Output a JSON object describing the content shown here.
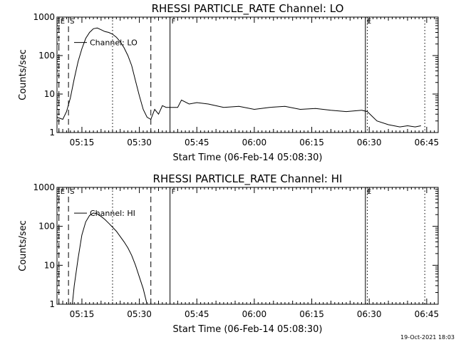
{
  "chart_data": [
    {
      "type": "line",
      "title": "RHESSI PARTICLE_RATE Channel: LO",
      "xlabel": "Start Time (06-Feb-14 05:08:30)",
      "ylabel": "Counts/sec",
      "yscale": "log",
      "ylim": [
        1,
        1000
      ],
      "xlim": [
        "05:08:30",
        "06:48:00"
      ],
      "x_ticks": [
        "05:15",
        "05:30",
        "05:45",
        "06:00",
        "06:15",
        "06:30",
        "06:45"
      ],
      "y_ticks": [
        "1",
        "10",
        "100",
        "1000"
      ],
      "legend": {
        "label": "Channel: LO",
        "position": "top-left"
      },
      "vertical_markers": [
        {
          "time": "05:09:00",
          "style": "dashed",
          "label": "E"
        },
        {
          "time": "05:11:30",
          "style": "dashed",
          "label": "S"
        },
        {
          "time": "05:23:00",
          "style": "dotted",
          "label": ""
        },
        {
          "time": "05:33:00",
          "style": "dashed",
          "label": ""
        },
        {
          "time": "05:38:00",
          "style": "solid",
          "label": "F"
        },
        {
          "time": "06:29:00",
          "style": "solid",
          "label": "E"
        },
        {
          "time": "06:29:30",
          "style": "dotted",
          "label": ""
        },
        {
          "time": "06:44:30",
          "style": "dotted",
          "label": ""
        }
      ],
      "series": [
        {
          "name": "Channel: LO",
          "x": [
            "05:08:30",
            "05:10:00",
            "05:11:00",
            "05:12:00",
            "05:13:00",
            "05:14:00",
            "05:15:00",
            "05:16:00",
            "05:17:00",
            "05:18:00",
            "05:19:00",
            "05:20:00",
            "05:21:00",
            "05:22:00",
            "05:23:00",
            "05:24:00",
            "05:25:00",
            "05:26:00",
            "05:27:00",
            "05:28:00",
            "05:29:00",
            "05:30:00",
            "05:31:00",
            "05:32:00",
            "05:33:00",
            "05:34:00",
            "05:35:00",
            "05:36:00",
            "05:37:00",
            "05:38:00",
            "05:40:00",
            "05:41:00",
            "05:43:00",
            "05:45:00",
            "05:48:00",
            "05:52:00",
            "05:56:00",
            "06:00:00",
            "06:04:00",
            "06:08:00",
            "06:12:00",
            "06:16:00",
            "06:20:00",
            "06:24:00",
            "06:28:00",
            "06:29:30",
            "06:32:00",
            "06:35:00",
            "06:38:00",
            "06:40:00",
            "06:42:00",
            "06:43:30"
          ],
          "values": [
            2.5,
            2.2,
            3.5,
            8,
            25,
            70,
            150,
            280,
            400,
            500,
            520,
            470,
            420,
            400,
            360,
            300,
            230,
            160,
            100,
            55,
            22,
            9,
            4,
            2.5,
            2.2,
            4,
            3,
            5,
            4.5,
            4.5,
            4.5,
            7,
            5.5,
            6,
            5.5,
            4.5,
            4.8,
            4,
            4.5,
            4.8,
            4,
            4.2,
            3.8,
            3.5,
            3.8,
            3.5,
            2,
            1.6,
            1.4,
            1.5,
            1.4,
            1.5
          ]
        }
      ]
    },
    {
      "type": "line",
      "title": "RHESSI PARTICLE_RATE Channel: HI",
      "xlabel": "Start Time (06-Feb-14 05:08:30)",
      "ylabel": "Counts/sec",
      "yscale": "log",
      "ylim": [
        1,
        1000
      ],
      "xlim": [
        "05:08:30",
        "06:48:00"
      ],
      "x_ticks": [
        "05:15",
        "05:30",
        "05:45",
        "06:00",
        "06:15",
        "06:30",
        "06:45"
      ],
      "y_ticks": [
        "1",
        "10",
        "100",
        "1000"
      ],
      "legend": {
        "label": "Channel: HI",
        "position": "top-left"
      },
      "vertical_markers": [
        {
          "time": "05:09:00",
          "style": "dashed",
          "label": "E"
        },
        {
          "time": "05:11:30",
          "style": "dashed",
          "label": "S"
        },
        {
          "time": "05:23:00",
          "style": "dotted",
          "label": ""
        },
        {
          "time": "05:33:00",
          "style": "dashed",
          "label": ""
        },
        {
          "time": "05:38:00",
          "style": "solid",
          "label": "F"
        },
        {
          "time": "06:29:00",
          "style": "solid",
          "label": "E"
        },
        {
          "time": "06:29:30",
          "style": "dotted",
          "label": ""
        },
        {
          "time": "06:44:30",
          "style": "dotted",
          "label": ""
        }
      ],
      "series": [
        {
          "name": "Channel: HI",
          "x": [
            "05:12:30",
            "05:13:00",
            "05:14:00",
            "05:15:00",
            "05:16:00",
            "05:17:00",
            "05:18:00",
            "05:19:00",
            "05:20:00",
            "05:21:00",
            "05:22:00",
            "05:23:00",
            "05:24:00",
            "05:25:00",
            "05:26:00",
            "05:27:00",
            "05:28:00",
            "05:29:00",
            "05:30:00",
            "05:31:00",
            "05:32:00"
          ],
          "values": [
            1,
            3,
            15,
            60,
            130,
            190,
            220,
            210,
            180,
            150,
            120,
            95,
            75,
            55,
            40,
            28,
            18,
            10,
            5,
            2.5,
            1
          ]
        }
      ]
    }
  ],
  "footer": {
    "timestamp": "19-Oct-2021 18:03"
  }
}
